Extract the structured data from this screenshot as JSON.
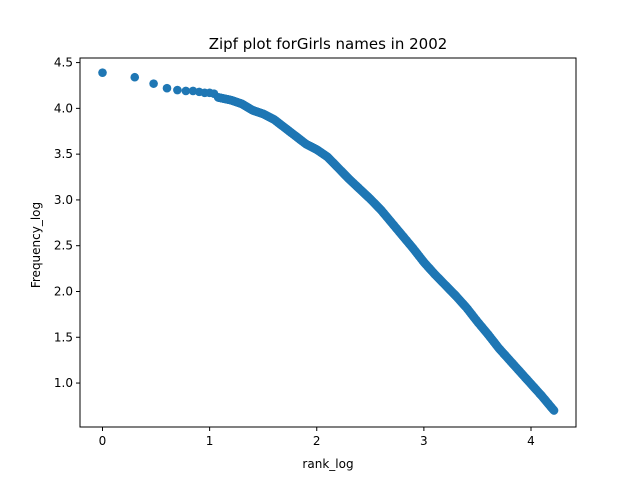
{
  "chart_data": {
    "type": "scatter",
    "title": "Zipf plot forGirls names in 2002",
    "xlabel": "rank_log",
    "ylabel": "Frequency_log",
    "xlim": [
      -0.21,
      4.42
    ],
    "ylim": [
      0.52,
      4.55
    ],
    "xticks": [
      0,
      1,
      2,
      3,
      4
    ],
    "yticks": [
      1.0,
      1.5,
      2.0,
      2.5,
      3.0,
      3.5,
      4.0,
      4.5
    ],
    "grid": false,
    "legend": "none",
    "marker_color": "#1f77b4",
    "curve": [
      [
        0.0,
        4.39
      ],
      [
        0.301,
        4.34
      ],
      [
        0.477,
        4.27
      ],
      [
        0.602,
        4.22
      ],
      [
        0.699,
        4.2
      ],
      [
        0.778,
        4.19
      ],
      [
        0.845,
        4.19
      ],
      [
        0.903,
        4.18
      ],
      [
        0.954,
        4.17
      ],
      [
        1.0,
        4.17
      ],
      [
        1.041,
        4.16
      ],
      [
        1.079,
        4.12
      ],
      [
        1.2,
        4.09
      ],
      [
        1.3,
        4.05
      ],
      [
        1.4,
        3.98
      ],
      [
        1.5,
        3.94
      ],
      [
        1.6,
        3.88
      ],
      [
        1.7,
        3.79
      ],
      [
        1.8,
        3.7
      ],
      [
        1.9,
        3.61
      ],
      [
        2.0,
        3.55
      ],
      [
        2.1,
        3.47
      ],
      [
        2.2,
        3.35
      ],
      [
        2.3,
        3.23
      ],
      [
        2.4,
        3.12
      ],
      [
        2.5,
        3.01
      ],
      [
        2.6,
        2.89
      ],
      [
        2.7,
        2.75
      ],
      [
        2.8,
        2.61
      ],
      [
        2.9,
        2.47
      ],
      [
        3.0,
        2.32
      ],
      [
        3.1,
        2.19
      ],
      [
        3.2,
        2.07
      ],
      [
        3.3,
        1.95
      ],
      [
        3.4,
        1.82
      ],
      [
        3.5,
        1.67
      ],
      [
        3.6,
        1.53
      ],
      [
        3.7,
        1.38
      ],
      [
        3.8,
        1.25
      ],
      [
        3.9,
        1.12
      ],
      [
        4.0,
        0.99
      ],
      [
        4.1,
        0.86
      ],
      [
        4.15,
        0.79
      ],
      [
        4.2,
        0.72
      ],
      [
        4.215,
        0.7
      ]
    ]
  }
}
